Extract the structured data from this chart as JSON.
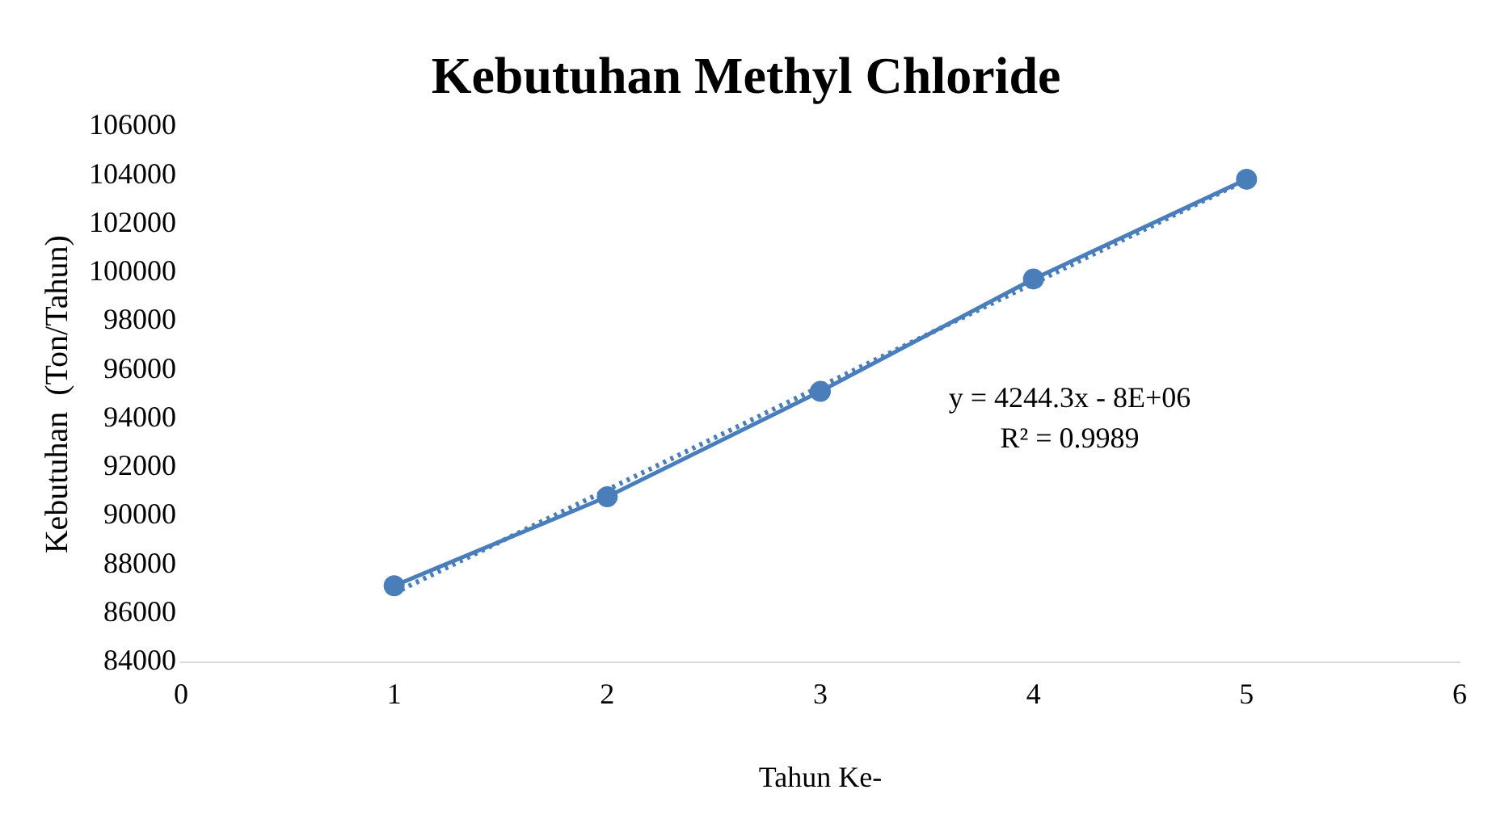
{
  "chart_data": {
    "type": "line",
    "title": "Kebutuhan Methyl Chloride",
    "xlabel": "Tahun Ke-",
    "ylabel": "Kebutuhan  (Ton/Tahun)",
    "annotations": [
      "y = 4244.3x - 8E+06",
      "R² = 0.9989"
    ],
    "x": [
      1,
      2,
      3,
      4,
      5
    ],
    "series": [
      {
        "color": "#4a7ebb",
        "values": [
          87130,
          90790,
          95120,
          99740,
          103840
        ],
        "marker": "circle",
        "line_style": "solid"
      },
      {
        "type": "line",
        "color": "#4a7ebb",
        "x": [
          1,
          5
        ],
        "values": [
          86830,
          103810
        ],
        "line_style": "dotted"
      }
    ],
    "xlim": [
      0,
      6
    ],
    "xticks": [
      0,
      1,
      2,
      3,
      4,
      5,
      6
    ],
    "ylim": [
      84000,
      106000
    ],
    "yticks": [
      84000,
      86000,
      88000,
      90000,
      92000,
      94000,
      96000,
      98000,
      100000,
      102000,
      104000,
      106000
    ],
    "grid": false,
    "legend": false
  }
}
